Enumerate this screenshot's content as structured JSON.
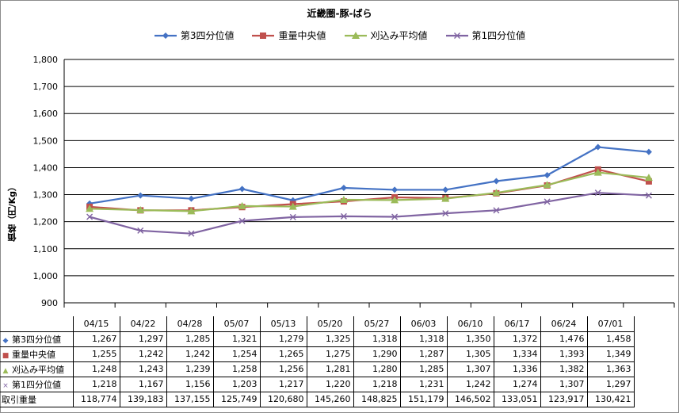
{
  "chart_data": {
    "type": "line",
    "title": "近畿圏-豚-ばら",
    "ylabel": "価格（円/Kg）",
    "ylim": [
      900,
      1800
    ],
    "yticks": [
      "900",
      "1,000",
      "1,100",
      "1,200",
      "1,300",
      "1,400",
      "1,500",
      "1,600",
      "1,700",
      "1,800"
    ],
    "categories": [
      "04/15",
      "04/22",
      "04/28",
      "05/07",
      "05/13",
      "05/20",
      "05/27",
      "06/03",
      "06/10",
      "06/17",
      "06/24",
      "07/01"
    ],
    "series": [
      {
        "name": "第3四分位値",
        "color": "#4472c4",
        "marker": "diamond",
        "values": [
          1267,
          1297,
          1285,
          1321,
          1279,
          1325,
          1318,
          1318,
          1350,
          1372,
          1476,
          1458
        ]
      },
      {
        "name": "重量中央値",
        "color": "#c0504d",
        "marker": "square",
        "values": [
          1255,
          1242,
          1242,
          1254,
          1265,
          1275,
          1290,
          1287,
          1305,
          1334,
          1393,
          1349
        ]
      },
      {
        "name": "刈込み平均値",
        "color": "#9bbb59",
        "marker": "triangle",
        "values": [
          1248,
          1243,
          1239,
          1258,
          1256,
          1281,
          1280,
          1285,
          1307,
          1336,
          1382,
          1363
        ]
      },
      {
        "name": "第1四分位値",
        "color": "#8064a2",
        "marker": "x",
        "values": [
          1218,
          1167,
          1156,
          1203,
          1217,
          1220,
          1218,
          1231,
          1242,
          1274,
          1307,
          1297
        ]
      }
    ],
    "grid": true,
    "legend_position": "top"
  },
  "table": {
    "rows": [
      {
        "label": "第3四分位値",
        "marker": "◆",
        "color": "#4472c4",
        "cells": [
          "1,267",
          "1,297",
          "1,285",
          "1,321",
          "1,279",
          "1,325",
          "1,318",
          "1,318",
          "1,350",
          "1,372",
          "1,476",
          "1,458"
        ]
      },
      {
        "label": "重量中央値",
        "marker": "■",
        "color": "#c0504d",
        "cells": [
          "1,255",
          "1,242",
          "1,242",
          "1,254",
          "1,265",
          "1,275",
          "1,290",
          "1,287",
          "1,305",
          "1,334",
          "1,393",
          "1,349"
        ]
      },
      {
        "label": "刈込み平均値",
        "marker": "▲",
        "color": "#9bbb59",
        "cells": [
          "1,248",
          "1,243",
          "1,239",
          "1,258",
          "1,256",
          "1,281",
          "1,280",
          "1,285",
          "1,307",
          "1,336",
          "1,382",
          "1,363"
        ]
      },
      {
        "label": "第1四分位値",
        "marker": "×",
        "color": "#8064a2",
        "cells": [
          "1,218",
          "1,167",
          "1,156",
          "1,203",
          "1,217",
          "1,220",
          "1,218",
          "1,231",
          "1,242",
          "1,274",
          "1,307",
          "1,297"
        ]
      },
      {
        "label": "取引重量",
        "marker": "",
        "color": "",
        "cells": [
          "118,774",
          "139,183",
          "137,155",
          "125,749",
          "120,680",
          "145,260",
          "148,825",
          "151,179",
          "146,502",
          "133,051",
          "123,917",
          "130,421"
        ]
      }
    ]
  }
}
